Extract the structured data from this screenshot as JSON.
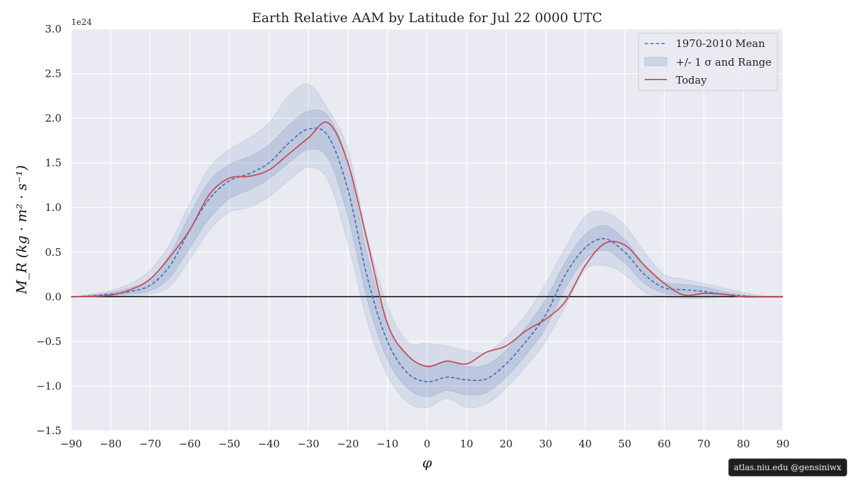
{
  "chart_data": {
    "type": "line",
    "title": "Earth Relative AAM by Latitude for Jul 22 0000 UTC",
    "xlabel": "φ",
    "ylabel": "M_R (kg · m² · s⁻¹)",
    "y_scale_label": "1e24",
    "xlim": [
      -90,
      90
    ],
    "ylim": [
      -1.5,
      3.0
    ],
    "x_ticks": [
      -90,
      -80,
      -70,
      -60,
      -50,
      -40,
      -30,
      -20,
      -10,
      0,
      10,
      20,
      30,
      40,
      50,
      60,
      70,
      80,
      90
    ],
    "x_tick_labels": [
      "−90",
      "−80",
      "−70",
      "−60",
      "−50",
      "−40",
      "−30",
      "−20",
      "−10",
      "0",
      "10",
      "20",
      "30",
      "40",
      "50",
      "60",
      "70",
      "80",
      "90"
    ],
    "y_ticks": [
      -1.5,
      -1.0,
      -0.5,
      0.0,
      0.5,
      1.0,
      1.5,
      2.0,
      2.5,
      3.0
    ],
    "y_tick_labels": [
      "−1.5",
      "−1.0",
      "−0.5",
      "0.0",
      "0.5",
      "1.0",
      "1.5",
      "2.0",
      "2.5",
      "3.0"
    ],
    "grid": true,
    "legend_position": "top-right",
    "legend": [
      "1970-2010 Mean",
      "+/- 1 σ and Range",
      "Today"
    ],
    "x": [
      -90,
      -85,
      -80,
      -75,
      -70,
      -65,
      -60,
      -55,
      -50,
      -45,
      -40,
      -35,
      -30,
      -25,
      -20,
      -15,
      -10,
      -5,
      0,
      5,
      10,
      15,
      20,
      25,
      30,
      35,
      40,
      45,
      50,
      55,
      60,
      65,
      70,
      75,
      80,
      85,
      90
    ],
    "series": [
      {
        "name": "1970-2010 Mean",
        "style": "dashed",
        "color": "#4c72b0",
        "values": [
          0.0,
          0.01,
          0.03,
          0.06,
          0.13,
          0.35,
          0.75,
          1.1,
          1.3,
          1.38,
          1.5,
          1.72,
          1.88,
          1.8,
          1.2,
          0.2,
          -0.5,
          -0.85,
          -0.95,
          -0.9,
          -0.93,
          -0.92,
          -0.75,
          -0.5,
          -0.2,
          0.25,
          0.55,
          0.65,
          0.5,
          0.25,
          0.1,
          0.08,
          0.06,
          0.03,
          0.01,
          0.0,
          0.0
        ]
      },
      {
        "name": "Today",
        "style": "solid",
        "color": "#c44e52",
        "values": [
          0.0,
          0.005,
          0.02,
          0.08,
          0.2,
          0.45,
          0.75,
          1.15,
          1.33,
          1.35,
          1.42,
          1.6,
          1.78,
          1.95,
          1.5,
          0.6,
          -0.3,
          -0.65,
          -0.78,
          -0.72,
          -0.75,
          -0.62,
          -0.55,
          -0.38,
          -0.25,
          -0.05,
          0.35,
          0.6,
          0.58,
          0.35,
          0.15,
          0.02,
          0.04,
          0.03,
          0.0,
          0.0,
          0.0
        ]
      }
    ],
    "sigma_band": {
      "lower": [
        0.0,
        0.0,
        0.01,
        0.03,
        0.07,
        0.22,
        0.55,
        0.88,
        1.1,
        1.2,
        1.32,
        1.5,
        1.65,
        1.55,
        0.9,
        -0.05,
        -0.7,
        -1.02,
        -1.12,
        -1.05,
        -1.1,
        -1.07,
        -0.9,
        -0.65,
        -0.35,
        0.1,
        0.42,
        0.52,
        0.38,
        0.15,
        0.04,
        0.02,
        0.02,
        0.01,
        0.0,
        0.0,
        0.0
      ],
      "upper": [
        0.0,
        0.02,
        0.05,
        0.1,
        0.2,
        0.48,
        0.92,
        1.3,
        1.48,
        1.57,
        1.7,
        1.92,
        2.08,
        2.02,
        1.5,
        0.45,
        -0.3,
        -0.66,
        -0.77,
        -0.72,
        -0.78,
        -0.76,
        -0.6,
        -0.34,
        -0.03,
        0.39,
        0.7,
        0.8,
        0.64,
        0.36,
        0.17,
        0.14,
        0.11,
        0.06,
        0.02,
        0.0,
        0.0
      ]
    },
    "range_band": {
      "lower": [
        0.0,
        0.0,
        0.0,
        0.01,
        0.03,
        0.12,
        0.42,
        0.75,
        0.95,
        1.0,
        1.12,
        1.3,
        1.45,
        1.3,
        0.6,
        -0.3,
        -0.88,
        -1.18,
        -1.24,
        -1.14,
        -1.24,
        -1.2,
        -1.02,
        -0.78,
        -0.5,
        -0.1,
        0.3,
        0.35,
        0.25,
        0.05,
        0.0,
        -0.02,
        -0.02,
        0.0,
        0.0,
        0.0,
        0.0
      ],
      "upper": [
        0.0,
        0.03,
        0.07,
        0.15,
        0.3,
        0.6,
        1.05,
        1.45,
        1.65,
        1.78,
        1.95,
        2.25,
        2.38,
        2.1,
        1.65,
        0.65,
        -0.1,
        -0.5,
        -0.52,
        -0.55,
        -0.6,
        -0.62,
        -0.45,
        -0.2,
        0.15,
        0.55,
        0.9,
        0.95,
        0.8,
        0.5,
        0.25,
        0.2,
        0.15,
        0.1,
        0.05,
        0.01,
        0.0
      ]
    }
  },
  "watermark": "atlas.niu.edu  @gensiniwx"
}
